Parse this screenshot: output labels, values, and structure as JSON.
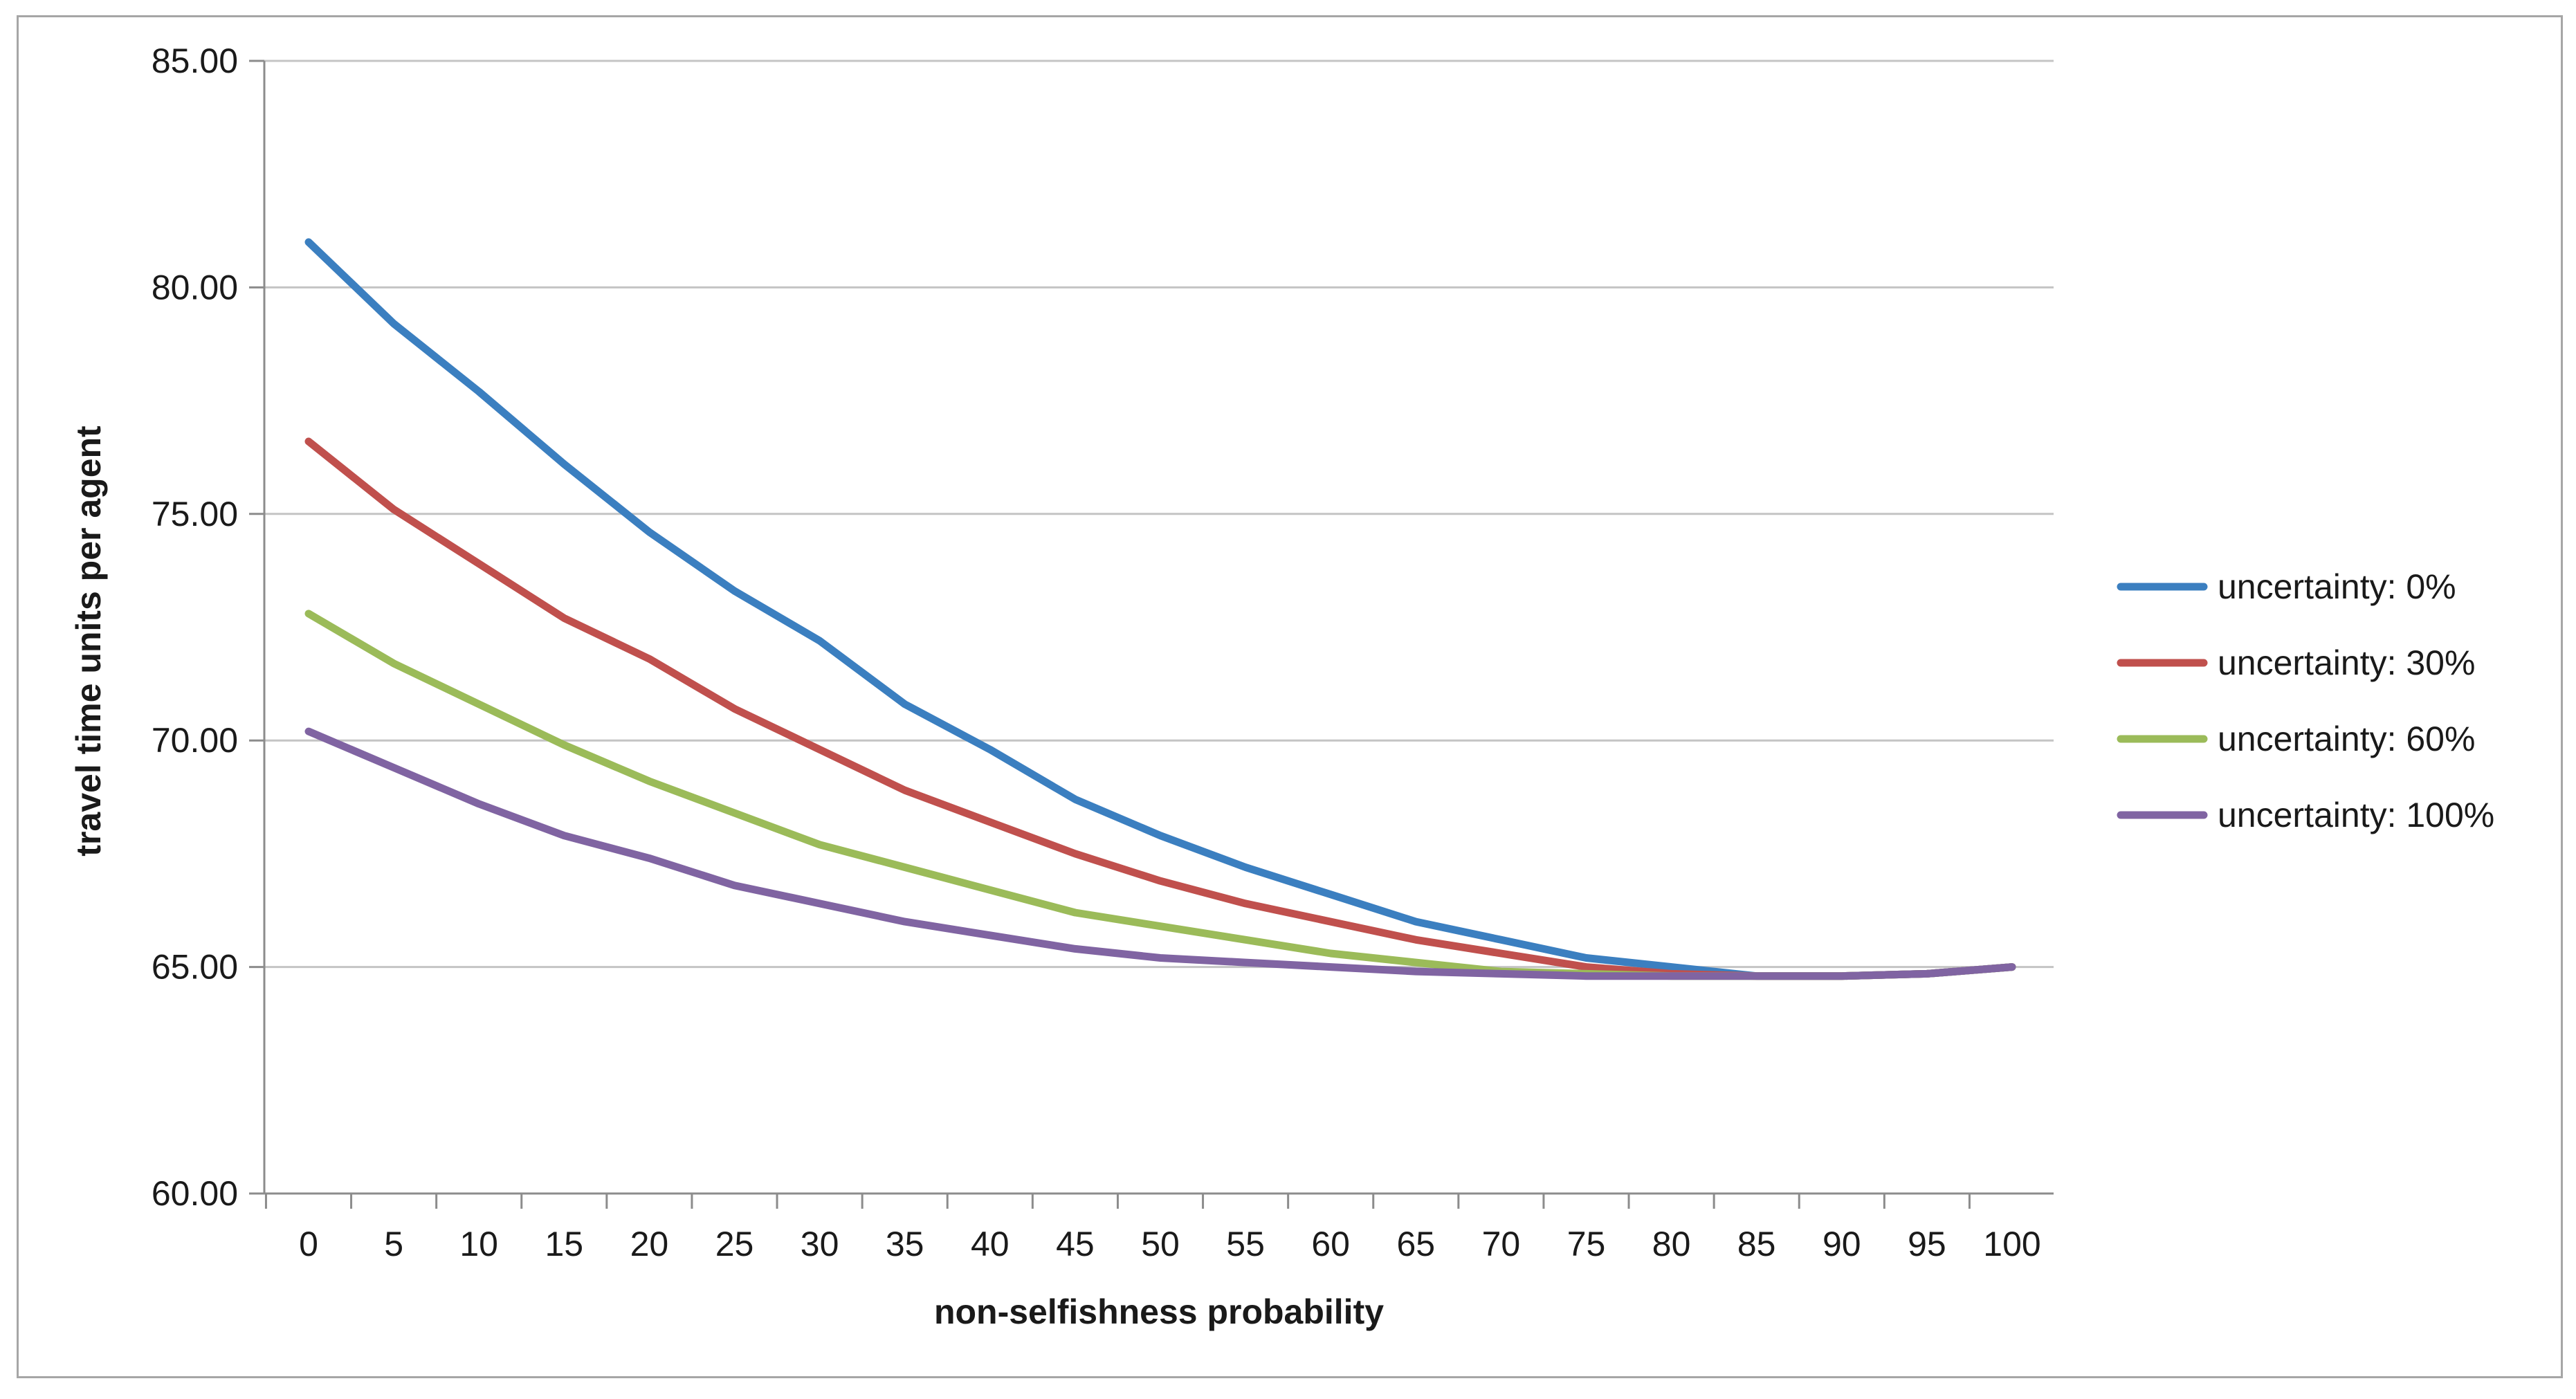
{
  "chart_data": {
    "type": "line",
    "title": "",
    "xlabel": "non-selfishness probability",
    "ylabel": "travel time units per agent",
    "x": [
      0,
      5,
      10,
      15,
      20,
      25,
      30,
      35,
      40,
      45,
      50,
      55,
      60,
      65,
      70,
      75,
      80,
      85,
      90,
      95,
      100
    ],
    "ylim": [
      60,
      85
    ],
    "yticks": [
      60,
      65,
      70,
      75,
      80,
      85
    ],
    "ytick_labels": [
      "60.00",
      "65.00",
      "70.00",
      "75.00",
      "80.00",
      "85.00"
    ],
    "xtick_labels": [
      "0",
      "5",
      "10",
      "15",
      "20",
      "25",
      "30",
      "35",
      "40",
      "45",
      "50",
      "55",
      "60",
      "65",
      "70",
      "75",
      "80",
      "85",
      "90",
      "95",
      "100"
    ],
    "grid": "horizontal",
    "legend_position": "right",
    "series": [
      {
        "name": "uncertainty: 0%",
        "color": "#3b7fc0",
        "values": [
          81.0,
          79.2,
          77.7,
          76.1,
          74.6,
          73.3,
          72.2,
          70.8,
          69.8,
          68.7,
          67.9,
          67.2,
          66.6,
          66.0,
          65.6,
          65.2,
          65.0,
          64.8,
          64.8,
          64.85,
          65.0
        ]
      },
      {
        "name": "uncertainty: 30%",
        "color": "#c0504d",
        "values": [
          76.6,
          75.1,
          73.9,
          72.7,
          71.8,
          70.7,
          69.8,
          68.9,
          68.2,
          67.5,
          66.9,
          66.4,
          66.0,
          65.6,
          65.3,
          65.0,
          64.85,
          64.8,
          64.8,
          64.85,
          65.0
        ]
      },
      {
        "name": "uncertainty: 60%",
        "color": "#9bbb59",
        "values": [
          72.8,
          71.7,
          70.8,
          69.9,
          69.1,
          68.4,
          67.7,
          67.2,
          66.7,
          66.2,
          65.9,
          65.6,
          65.3,
          65.1,
          64.9,
          64.85,
          64.8,
          64.8,
          64.8,
          64.85,
          65.0
        ]
      },
      {
        "name": "uncertainty: 100%",
        "color": "#8064a2",
        "values": [
          70.2,
          69.4,
          68.6,
          67.9,
          67.4,
          66.8,
          66.4,
          66.0,
          65.7,
          65.4,
          65.2,
          65.1,
          65.0,
          64.9,
          64.85,
          64.8,
          64.8,
          64.8,
          64.8,
          64.85,
          65.0
        ]
      }
    ]
  }
}
